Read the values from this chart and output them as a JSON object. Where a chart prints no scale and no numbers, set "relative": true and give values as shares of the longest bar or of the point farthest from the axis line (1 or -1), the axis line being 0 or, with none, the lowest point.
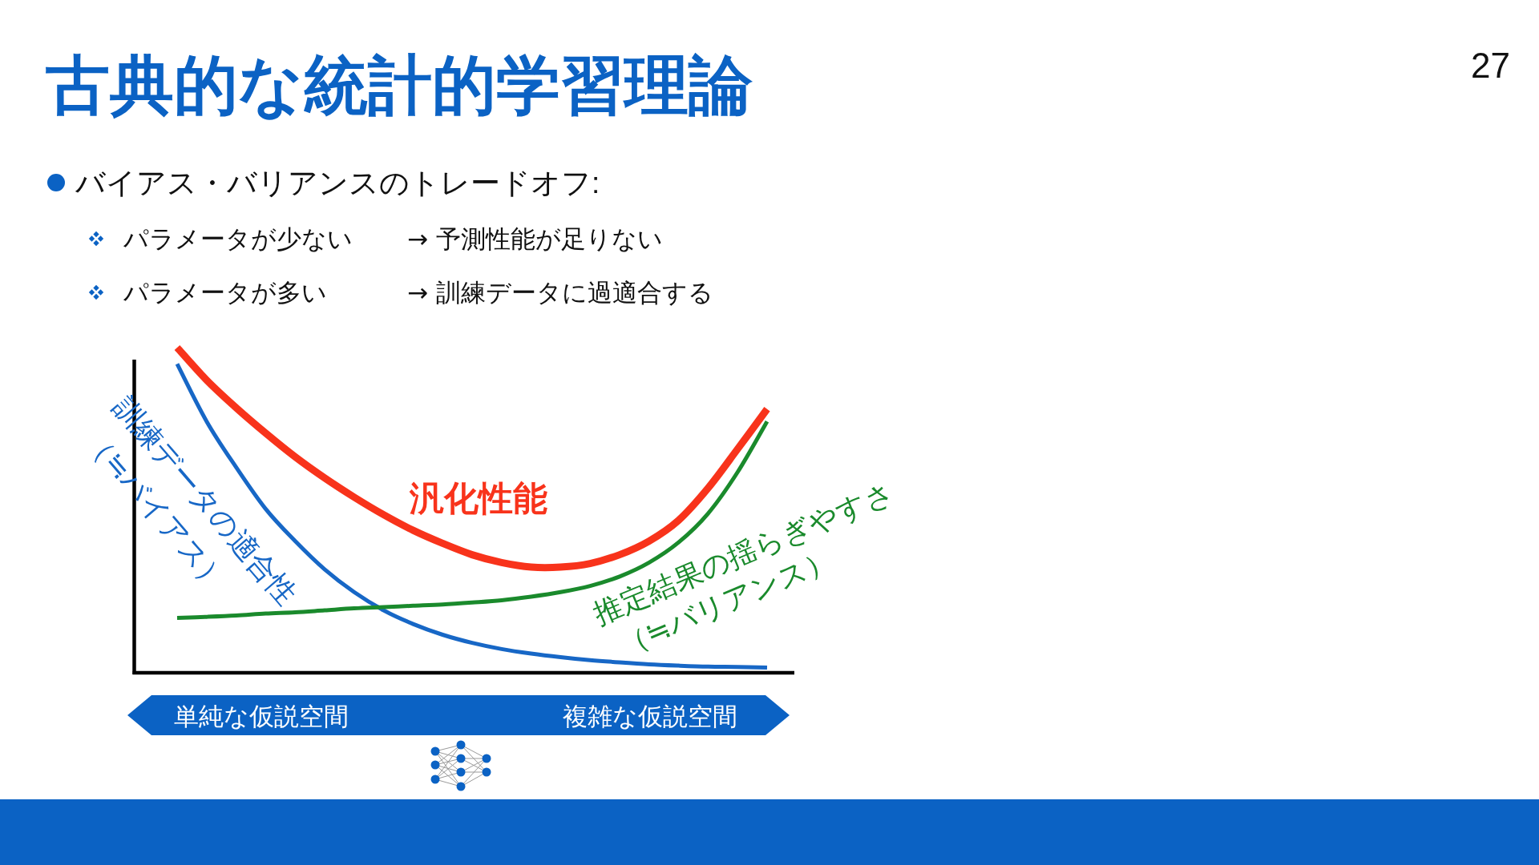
{
  "chart_data": {
    "type": "line",
    "title": "古典的な統計的学習理論",
    "subtitle": "バイアス・バリアンスのトレードオフ:",
    "relative": true,
    "categories": [
      null,
      null,
      null,
      null,
      null,
      null,
      null,
      null,
      null,
      null,
      null,
      null,
      null,
      null,
      null,
      null,
      null,
      null,
      null,
      null,
      null
    ],
    "series": [
      {
        "name": "汎化性能",
        "color": "#f8331b",
        "values": [
          1.0,
          0.9,
          0.815,
          0.737,
          0.664,
          0.599,
          0.54,
          0.486,
          0.438,
          0.398,
          0.363,
          0.339,
          0.325,
          0.325,
          0.336,
          0.363,
          0.405,
          0.469,
          0.568,
          0.688,
          0.811
        ]
      },
      {
        "name": "訓練データの適合性\n（≒バイアス）",
        "color": "#1767c6",
        "values": [
          0.95,
          0.773,
          0.632,
          0.504,
          0.405,
          0.318,
          0.248,
          0.192,
          0.15,
          0.117,
          0.092,
          0.073,
          0.059,
          0.048,
          0.039,
          0.032,
          0.026,
          0.022,
          0.019,
          0.018,
          0.016
        ]
      },
      {
        "name": "推定結果の揺らぎやすさ\n（≒バリアンス）",
        "color": "#1a8a2c",
        "values": [
          0.169,
          0.172,
          0.176,
          0.182,
          0.186,
          0.192,
          0.198,
          0.202,
          0.206,
          0.21,
          0.216,
          0.223,
          0.234,
          0.248,
          0.267,
          0.296,
          0.339,
          0.401,
          0.49,
          0.617,
          0.773
        ]
      }
    ],
    "annotations": [
      "パラメータが少ない",
      "→ 予測性能が足りない",
      "パラメータが多い",
      "→ 訓練データに過適合する",
      "単純な仮説空間",
      "複雑な仮説空間",
      "27"
    ]
  }
}
